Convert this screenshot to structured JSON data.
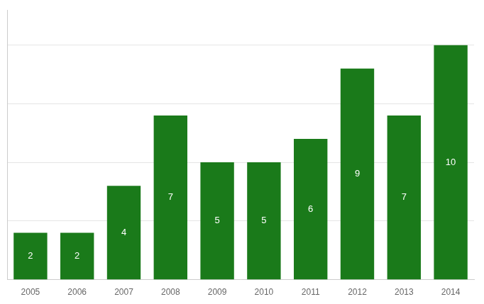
{
  "chart_data": {
    "type": "bar",
    "categories": [
      "2005",
      "2006",
      "2007",
      "2008",
      "2009",
      "2010",
      "2011",
      "2012",
      "2013",
      "2014"
    ],
    "values": [
      2,
      2,
      4,
      7,
      5,
      5,
      6,
      9,
      7,
      10
    ],
    "color": "#1a7a1a",
    "ylim": [
      0,
      11.5
    ],
    "yticks": [
      2.5,
      5.0,
      7.5,
      10.0
    ],
    "grid": true,
    "data_labels": true,
    "tick_labels": "x"
  }
}
